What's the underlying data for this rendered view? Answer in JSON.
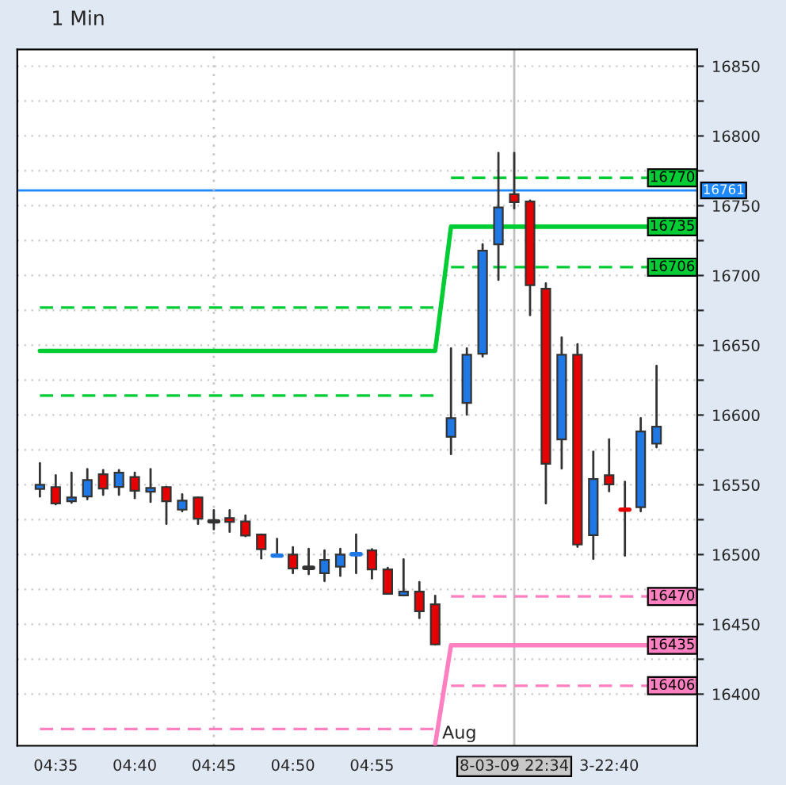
{
  "chart_data": {
    "type": "candlestick",
    "title": "1 Min",
    "categories": [
      null,
      "04:35",
      null,
      null,
      null,
      null,
      "04:40",
      null,
      null,
      null,
      null,
      "04:45",
      null,
      null,
      null,
      null,
      "04:50",
      null,
      null,
      null,
      null,
      "04:55",
      null,
      null,
      null,
      null,
      null,
      null,
      null,
      null,
      "8-03-09 22:34",
      null,
      null,
      null,
      null,
      null,
      "3-22:40",
      null,
      null,
      null
    ],
    "ohlc": [
      [
        16547,
        16565.5,
        16541.6,
        16550
      ],
      [
        16548.4,
        16556.8,
        16536,
        16536.7
      ],
      [
        16538.2,
        16558.7,
        16537.1,
        16540.9
      ],
      [
        16541.6,
        16561.3,
        16539.7,
        16553.4
      ],
      [
        16557.5,
        16560.6,
        16542.8,
        16547.3
      ],
      [
        16548.5,
        16560.6,
        16542.8,
        16558.7
      ],
      [
        16555.6,
        16558.7,
        16540.5,
        16545.8
      ],
      [
        16545,
        16561.3,
        16537.8,
        16547.7
      ],
      [
        16548.4,
        16548.4,
        16522,
        16538.2
      ],
      [
        16532.2,
        16543.2,
        16531,
        16538.6
      ],
      [
        16540.9,
        16540.9,
        16522,
        16525.7
      ],
      [
        16523.8,
        16531.8,
        16518.2,
        16523.8
      ],
      [
        16526.1,
        16531.8,
        16516.3,
        16523.4
      ],
      [
        16523.8,
        16528,
        16513.2,
        16513.6
      ],
      [
        16514.4,
        16514.4,
        16497.3,
        16503.8
      ],
      [
        16499.2,
        16511.3,
        16499.2,
        16499.2
      ],
      [
        16500,
        16505.3,
        16486.7,
        16490.1
      ],
      [
        16490.5,
        16504.1,
        16486,
        16490.5
      ],
      [
        16486.7,
        16503,
        16481,
        16496.2
      ],
      [
        16491.3,
        16504.1,
        16484.8,
        16500
      ],
      [
        16500.3,
        16514.4,
        16486.7,
        16500.3
      ],
      [
        16503,
        16503.8,
        16482.9,
        16489.4
      ],
      [
        16489.4,
        16490.5,
        16471.9,
        16471.9
      ],
      [
        16470.8,
        16496.6,
        16470.8,
        16473.4
      ],
      [
        16473.4,
        16480.3,
        16454.5,
        16459.4
      ],
      [
        16464.4,
        16470.4,
        16435.6,
        16435.6
      ],
      [
        16584.4,
        16647.7,
        16572,
        16597.7
      ],
      [
        16608.7,
        16647.7,
        16600.3,
        16643.2
      ],
      [
        16643.9,
        16722.3,
        16642,
        16717.8
      ],
      [
        16722.3,
        16787.8,
        16696.9,
        16748.8
      ],
      [
        16758.3,
        16787.8,
        16748.1,
        16752.6
      ],
      [
        16753,
        16753.8,
        16671.6,
        16693.1
      ],
      [
        16690.5,
        16694.3,
        16536.7,
        16565.1
      ],
      [
        16582.5,
        16655.6,
        16561.7,
        16643.2
      ],
      [
        16643.2,
        16650.7,
        16505.6,
        16507.2
      ],
      [
        16514,
        16573.8,
        16496.9,
        16554.1
      ],
      [
        16556.8,
        16582.5,
        16545.4,
        16550.3
      ],
      [
        16532.2,
        16552.2,
        16499.2,
        16532.2
      ],
      [
        16534,
        16597.7,
        16531,
        16588.2
      ],
      [
        16579.5,
        16635.2,
        16576.9,
        16591.6
      ]
    ],
    "colors": [
      "#1e78e6",
      "#e60000",
      "#1e78e6",
      "#1e78e6",
      "#e60000",
      "#1e78e6",
      "#e60000",
      "#1e78e6",
      "#e60000",
      "#1e78e6",
      "#e60000",
      "#333333",
      "#e60000",
      "#e60000",
      "#e60000",
      "#1e78e6",
      "#e60000",
      "#333333",
      "#1e78e6",
      "#1e78e6",
      "#1e78e6",
      "#e60000",
      "#e60000",
      "#1e78e6",
      "#e60000",
      "#e60000",
      "#1e78e6",
      "#1e78e6",
      "#1e78e6",
      "#1e78e6",
      "#e60000",
      "#e60000",
      "#e60000",
      "#1e78e6",
      "#e60000",
      "#1e78e6",
      "#e60000",
      "#e60000",
      "#1e78e6",
      "#1e78e6"
    ],
    "series": [
      {
        "type": "line",
        "color": "#00cc33",
        "line_style": "solid",
        "values": [
          16646,
          16646,
          16646,
          16646,
          16646,
          16646,
          16646,
          16646,
          16646,
          16646,
          16646,
          16646,
          16646,
          16646,
          16646,
          16646,
          16646,
          16646,
          16646,
          16646,
          16646,
          16646,
          16646,
          16646,
          16646,
          16646,
          16735,
          16735,
          16735,
          16735,
          16735,
          16735,
          16735,
          16735,
          16735,
          16735,
          16735,
          16735,
          16735,
          16735
        ],
        "value_labels": [
          null,
          null,
          null,
          null,
          null,
          null,
          null,
          null,
          null,
          null,
          null,
          null,
          null,
          null,
          null,
          null,
          null,
          null,
          null,
          null,
          null,
          null,
          null,
          null,
          null,
          null,
          null,
          null,
          null,
          null,
          null,
          null,
          null,
          null,
          null,
          null,
          null,
          null,
          null,
          "16735"
        ]
      },
      {
        "type": "line",
        "color": "#00cc33",
        "line_style": "dashed",
        "values": [
          16677,
          16677,
          16677,
          16677,
          16677,
          16677,
          16677,
          16677,
          16677,
          16677,
          16677,
          16677,
          16677,
          16677,
          16677,
          16677,
          16677,
          16677,
          16677,
          16677,
          16677,
          16677,
          16677,
          16677,
          16677,
          16677,
          null,
          null,
          null,
          null,
          null,
          null,
          null,
          null,
          null,
          null,
          null,
          null,
          null,
          null
        ]
      },
      {
        "type": "line",
        "color": "#00cc33",
        "line_style": "dashed",
        "values": [
          16614,
          16614,
          16614,
          16614,
          16614,
          16614,
          16614,
          16614,
          16614,
          16614,
          16614,
          16614,
          16614,
          16614,
          16614,
          16614,
          16614,
          16614,
          16614,
          16614,
          16614,
          16614,
          16614,
          16614,
          16614,
          16614,
          null,
          null,
          null,
          null,
          null,
          null,
          null,
          null,
          null,
          null,
          null,
          null,
          null,
          null
        ]
      },
      {
        "type": "line",
        "color": "#00cc33",
        "line_style": "dashed",
        "values": [
          null,
          null,
          null,
          null,
          null,
          null,
          null,
          null,
          null,
          null,
          null,
          null,
          null,
          null,
          null,
          null,
          null,
          null,
          null,
          null,
          null,
          null,
          null,
          null,
          null,
          null,
          16770,
          16770,
          16770,
          16770,
          16770,
          16770,
          16770,
          16770,
          16770,
          16770,
          16770,
          16770,
          16770,
          16770
        ],
        "value_labels": [
          null,
          null,
          null,
          null,
          null,
          null,
          null,
          null,
          null,
          null,
          null,
          null,
          null,
          null,
          null,
          null,
          null,
          null,
          null,
          null,
          null,
          null,
          null,
          null,
          null,
          null,
          null,
          null,
          null,
          null,
          null,
          null,
          null,
          null,
          null,
          null,
          null,
          null,
          null,
          "16770"
        ]
      },
      {
        "type": "line",
        "color": "#00cc33",
        "line_style": "dashed",
        "values": [
          null,
          null,
          null,
          null,
          null,
          null,
          null,
          null,
          null,
          null,
          null,
          null,
          null,
          null,
          null,
          null,
          null,
          null,
          null,
          null,
          null,
          null,
          null,
          null,
          null,
          null,
          16706,
          16706,
          16706,
          16706,
          16706,
          16706,
          16706,
          16706,
          16706,
          16706,
          16706,
          16706,
          16706,
          16706
        ],
        "value_labels": [
          null,
          null,
          null,
          null,
          null,
          null,
          null,
          null,
          null,
          null,
          null,
          null,
          null,
          null,
          null,
          null,
          null,
          null,
          null,
          null,
          null,
          null,
          null,
          null,
          null,
          null,
          null,
          null,
          null,
          null,
          null,
          null,
          null,
          null,
          null,
          null,
          null,
          null,
          null,
          "16706"
        ]
      },
      {
        "type": "line",
        "color": "#ff80c0",
        "line_style": "solid",
        "values": [
          null,
          null,
          null,
          null,
          null,
          null,
          null,
          null,
          null,
          null,
          null,
          null,
          null,
          null,
          null,
          null,
          null,
          null,
          null,
          null,
          null,
          null,
          null,
          null,
          null,
          16364,
          16435,
          16435,
          16435,
          16435,
          16435,
          16435,
          16435,
          16435,
          16435,
          16435,
          16435,
          16435,
          16435,
          16435
        ],
        "value_labels": [
          null,
          null,
          null,
          null,
          null,
          null,
          null,
          null,
          null,
          null,
          null,
          null,
          null,
          null,
          null,
          null,
          null,
          null,
          null,
          null,
          null,
          null,
          null,
          null,
          null,
          null,
          null,
          null,
          null,
          null,
          null,
          null,
          null,
          null,
          null,
          null,
          null,
          null,
          null,
          "16435"
        ]
      },
      {
        "type": "line",
        "color": "#ff80c0",
        "line_style": "dashed",
        "values": [
          16375,
          16375,
          16375,
          16375,
          16375,
          16375,
          16375,
          16375,
          16375,
          16375,
          16375,
          16375,
          16375,
          16375,
          16375,
          16375,
          16375,
          16375,
          16375,
          16375,
          16375,
          16375,
          16375,
          16375,
          16375,
          16375,
          null,
          null,
          null,
          null,
          null,
          null,
          null,
          null,
          null,
          null,
          null,
          null,
          null,
          null
        ]
      },
      {
        "type": "line",
        "color": "#ff80c0",
        "line_style": "dashed",
        "values": [
          null,
          null,
          null,
          null,
          null,
          null,
          null,
          null,
          null,
          null,
          null,
          null,
          null,
          null,
          null,
          null,
          null,
          null,
          null,
          null,
          null,
          null,
          null,
          null,
          null,
          null,
          16470,
          16470,
          16470,
          16470,
          16470,
          16470,
          16470,
          16470,
          16470,
          16470,
          16470,
          16470,
          16470,
          16470
        ],
        "value_labels": [
          null,
          null,
          null,
          null,
          null,
          null,
          null,
          null,
          null,
          null,
          null,
          null,
          null,
          null,
          null,
          null,
          null,
          null,
          null,
          null,
          null,
          null,
          null,
          null,
          null,
          null,
          null,
          null,
          null,
          null,
          null,
          null,
          null,
          null,
          null,
          null,
          null,
          null,
          null,
          "16470"
        ]
      },
      {
        "type": "line",
        "color": "#ff80c0",
        "line_style": "dashed",
        "values": [
          null,
          null,
          null,
          null,
          null,
          null,
          null,
          null,
          null,
          null,
          null,
          null,
          null,
          null,
          null,
          null,
          null,
          null,
          null,
          null,
          null,
          null,
          null,
          null,
          null,
          null,
          16406,
          16406,
          16406,
          16406,
          16406,
          16406,
          16406,
          16406,
          16406,
          16406,
          16406,
          16406,
          16406,
          16406
        ],
        "value_labels": [
          null,
          null,
          null,
          null,
          null,
          null,
          null,
          null,
          null,
          null,
          null,
          null,
          null,
          null,
          null,
          null,
          null,
          null,
          null,
          null,
          null,
          null,
          null,
          null,
          null,
          null,
          null,
          null,
          null,
          null,
          null,
          null,
          null,
          null,
          null,
          null,
          null,
          null,
          null,
          "16406"
        ]
      }
    ],
    "ref_lines": [
      {
        "axis": "y",
        "value": 16761,
        "label": "16761",
        "color": "#1e88ff",
        "line_style": "solid"
      },
      {
        "axis": "x",
        "value": "8-03-09 22:34",
        "label": null,
        "color": "#c0c0c0",
        "line_style": "solid"
      },
      {
        "axis": "x",
        "value": "04:45",
        "label": null,
        "color": "#c8c8c8",
        "line_style": "dotted"
      }
    ],
    "annotations": [
      "Aug"
    ],
    "ylim": [
      16363,
      16862
    ],
    "yticks": [
      16400,
      {
        "value": 16425,
        "label": null
      },
      16450,
      {
        "value": 16475,
        "label": null
      },
      16500,
      {
        "value": 16525,
        "label": null
      },
      16550,
      {
        "value": 16575,
        "label": null
      },
      16600,
      {
        "value": 16625,
        "label": null
      },
      16650,
      {
        "value": 16675,
        "label": null
      },
      16700,
      {
        "value": 16725,
        "label": null
      },
      16750,
      {
        "value": 16775,
        "label": null
      },
      16800,
      {
        "value": 16825,
        "label": null
      },
      16850
    ],
    "grid": "y"
  }
}
